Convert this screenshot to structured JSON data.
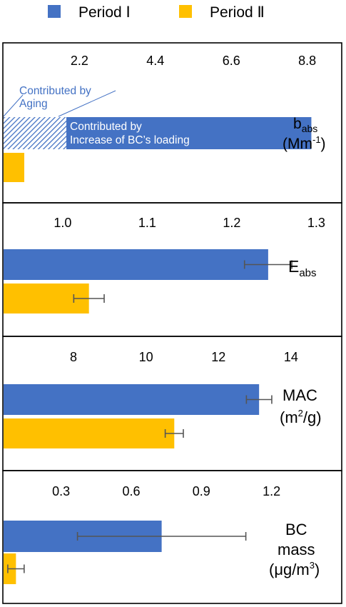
{
  "legend": {
    "items": [
      {
        "label": "Period Ⅰ",
        "color": "#4472C4"
      },
      {
        "label": "Period Ⅱ",
        "color": "#FFC000"
      }
    ]
  },
  "colors": {
    "period1": "#4472C4",
    "period2": "#FFC000",
    "hatch": "#4472C4",
    "annotation": "#4472C4",
    "errorbar": "#555555"
  },
  "chart_data": [
    {
      "type": "bar",
      "orientation": "horizontal",
      "label_main": "b",
      "label_sub": "abs",
      "label_line2": "(Mm",
      "label_line2_sup": "-1",
      "label_line2_end": ")",
      "xlim": [
        0,
        9.8
      ],
      "ticks": [
        "2.2",
        "4.4",
        "6.6",
        "8.8"
      ],
      "tick_values": [
        2.2,
        4.4,
        6.6,
        8.8
      ],
      "series": [
        {
          "name": "Period Ⅰ",
          "value": 8.92,
          "error": null,
          "segments": [
            {
              "from": 0,
              "to": 1.82,
              "pattern": "hatched",
              "label": "Contributed by Aging"
            },
            {
              "from": 1.82,
              "to": 8.92,
              "pattern": "solid",
              "label": "Contributed by Increase of BC's loading"
            }
          ]
        },
        {
          "name": "Period Ⅱ",
          "value": 0.6,
          "error": null
        }
      ],
      "annotations": {
        "aging_line1": "Contributed by",
        "aging_line2": "Aging",
        "bc_line1": "Contributed by",
        "bc_line2": "Increase of BC’s loading"
      }
    },
    {
      "type": "bar",
      "orientation": "horizontal",
      "label_main": "E",
      "label_sub": "abs",
      "xlim": [
        0.93,
        1.33
      ],
      "ticks": [
        "1.0",
        "1.1",
        "1.2",
        "1.3"
      ],
      "tick_values": [
        1.0,
        1.1,
        1.2,
        1.3
      ],
      "series": [
        {
          "name": "Period Ⅰ",
          "value": 1.243,
          "error": 0.028
        },
        {
          "name": "Period Ⅱ",
          "value": 1.031,
          "error": 0.018
        }
      ]
    },
    {
      "type": "bar",
      "orientation": "horizontal",
      "label_main": "MAC",
      "label_line2": "(m",
      "label_line2_sup": "2",
      "label_line2_end": "/g)",
      "xlim": [
        6.07,
        15.4
      ],
      "ticks": [
        "8",
        "10",
        "12",
        "14"
      ],
      "tick_values": [
        8,
        10,
        12,
        14
      ],
      "series": [
        {
          "name": "Period Ⅰ",
          "value": 13.12,
          "error": 0.35
        },
        {
          "name": "Period Ⅱ",
          "value": 10.78,
          "error": 0.25
        }
      ]
    },
    {
      "type": "bar",
      "orientation": "horizontal",
      "label_main": "BC",
      "label_line2_plain": "mass",
      "label_line3": "(μg/m",
      "label_line3_sup": "3",
      "label_line3_end": ")",
      "xlim": [
        0.054,
        1.5
      ],
      "ticks": [
        "0.3",
        "0.6",
        "0.9",
        "1.2"
      ],
      "tick_values": [
        0.3,
        0.6,
        0.9,
        1.2
      ],
      "series": [
        {
          "name": "Period Ⅰ",
          "value": 0.73,
          "error": 0.36
        },
        {
          "name": "Period Ⅱ",
          "value": 0.107,
          "error": 0.035
        }
      ]
    }
  ]
}
